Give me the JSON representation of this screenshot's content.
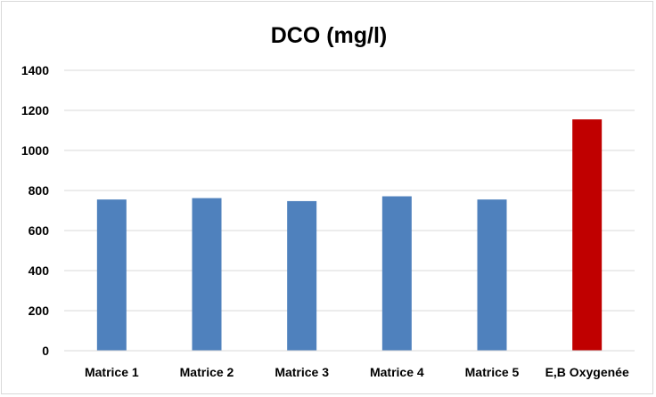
{
  "chart_data": {
    "type": "bar",
    "title": "DCO (mg/l)",
    "xlabel": "",
    "ylabel": "",
    "categories": [
      "Matrice 1",
      "Matrice 2",
      "Matrice 3",
      "Matrice 4",
      "Matrice 5",
      "E,B Oxygenée"
    ],
    "values": [
      755,
      762,
      747,
      771,
      755,
      1155
    ],
    "bar_colors": [
      "#4f81bd",
      "#4f81bd",
      "#4f81bd",
      "#4f81bd",
      "#4f81bd",
      "#c00000"
    ],
    "ylim": [
      0,
      1400
    ],
    "yticks": [
      "0",
      "200",
      "400",
      "600",
      "800",
      "1000",
      "1200",
      "1400"
    ],
    "grid": true,
    "legend": "none"
  }
}
